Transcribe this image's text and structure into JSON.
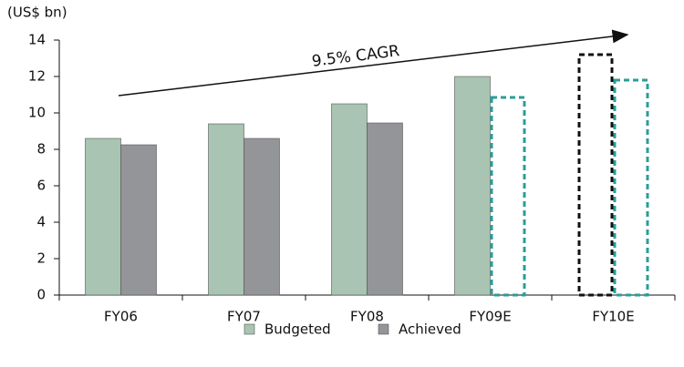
{
  "chart_data": {
    "type": "bar",
    "y_label": "(US$ bn)",
    "annotation": "9.5% CAGR",
    "categories": [
      "FY06",
      "FY07",
      "FY08",
      "FY09E",
      "FY10E"
    ],
    "series": [
      {
        "name": "Budgeted",
        "color": "#a9c4b2",
        "dashed_color": "#111111",
        "dashed": [
          false,
          false,
          false,
          false,
          true
        ],
        "values": [
          8.6,
          9.4,
          10.5,
          12.0,
          13.2
        ]
      },
      {
        "name": "Achieved",
        "color": "#939598",
        "dashed_color": "#2a9d9a",
        "dashed": [
          false,
          false,
          false,
          true,
          true
        ],
        "values": [
          8.25,
          8.6,
          9.45,
          10.85,
          11.8
        ]
      }
    ],
    "ylim": [
      0,
      14
    ],
    "yticks": [
      0,
      2,
      4,
      6,
      8,
      10,
      12,
      14
    ],
    "grid": false,
    "legend": "bottom"
  }
}
